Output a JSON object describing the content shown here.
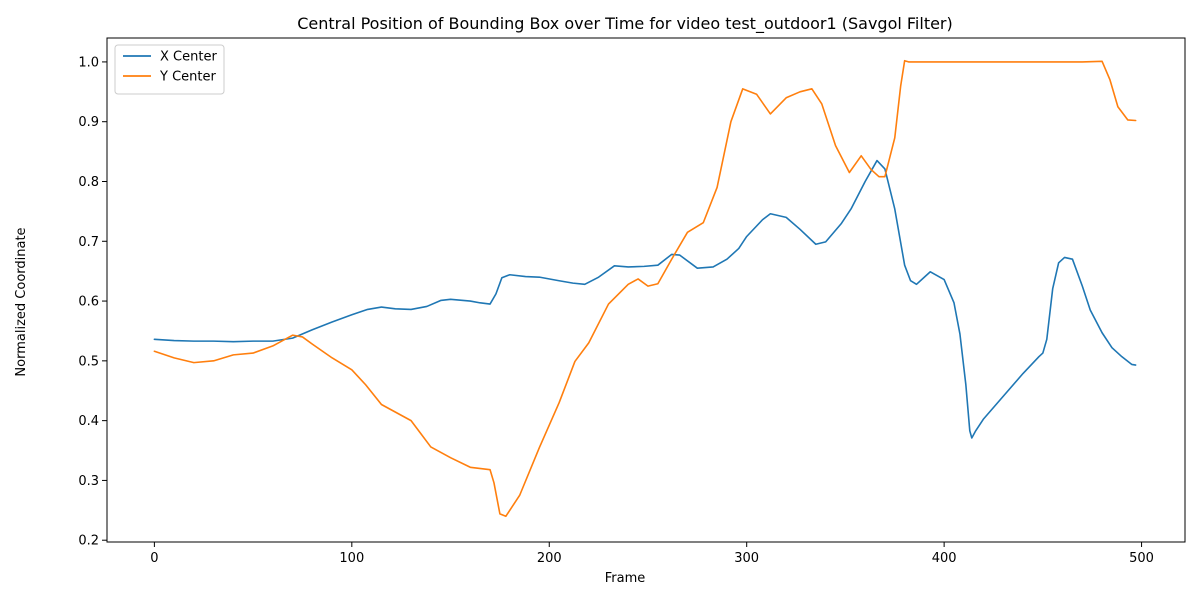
{
  "chart_data": {
    "type": "line",
    "title": "Central Position of Bounding Box over Time for video test_outdoor1 (Savgol Filter)",
    "xlabel": "Frame",
    "ylabel": "Normalized Coordinate",
    "xlim": [
      -24,
      522
    ],
    "ylim": [
      0.197,
      1.04
    ],
    "xticks": [
      0,
      100,
      200,
      300,
      400,
      500
    ],
    "yticks": [
      0.2,
      0.3,
      0.4,
      0.5,
      0.6,
      0.7,
      0.8,
      0.9,
      1.0
    ],
    "xtick_labels": [
      "0",
      "100",
      "200",
      "300",
      "400",
      "500"
    ],
    "ytick_labels": [
      "0.2",
      "0.3",
      "0.4",
      "0.5",
      "0.6",
      "0.7",
      "0.8",
      "0.9",
      "1.0"
    ],
    "grid": false,
    "legend_position": "upper-left",
    "series": [
      {
        "name": "X Center",
        "color": "#1f77b4",
        "points": [
          [
            0,
            0.536
          ],
          [
            10,
            0.534
          ],
          [
            20,
            0.533
          ],
          [
            30,
            0.533
          ],
          [
            40,
            0.532
          ],
          [
            50,
            0.533
          ],
          [
            60,
            0.533
          ],
          [
            70,
            0.538
          ],
          [
            80,
            0.552
          ],
          [
            90,
            0.565
          ],
          [
            100,
            0.577
          ],
          [
            108,
            0.586
          ],
          [
            115,
            0.59
          ],
          [
            122,
            0.587
          ],
          [
            130,
            0.586
          ],
          [
            138,
            0.591
          ],
          [
            145,
            0.601
          ],
          [
            150,
            0.603
          ],
          [
            160,
            0.6
          ],
          [
            165,
            0.597
          ],
          [
            170,
            0.595
          ],
          [
            173,
            0.612
          ],
          [
            176,
            0.639
          ],
          [
            180,
            0.644
          ],
          [
            188,
            0.641
          ],
          [
            195,
            0.64
          ],
          [
            205,
            0.634
          ],
          [
            212,
            0.63
          ],
          [
            218,
            0.628
          ],
          [
            225,
            0.64
          ],
          [
            233,
            0.659
          ],
          [
            240,
            0.657
          ],
          [
            248,
            0.658
          ],
          [
            255,
            0.66
          ],
          [
            262,
            0.678
          ],
          [
            266,
            0.677
          ],
          [
            275,
            0.655
          ],
          [
            283,
            0.657
          ],
          [
            290,
            0.67
          ],
          [
            296,
            0.688
          ],
          [
            300,
            0.708
          ],
          [
            308,
            0.736
          ],
          [
            312,
            0.746
          ],
          [
            320,
            0.74
          ],
          [
            327,
            0.72
          ],
          [
            335,
            0.695
          ],
          [
            340,
            0.699
          ],
          [
            348,
            0.73
          ],
          [
            353,
            0.755
          ],
          [
            360,
            0.8
          ],
          [
            366,
            0.835
          ],
          [
            370,
            0.821
          ],
          [
            375,
            0.754
          ],
          [
            380,
            0.66
          ],
          [
            383,
            0.634
          ],
          [
            386,
            0.628
          ],
          [
            390,
            0.64
          ],
          [
            393,
            0.649
          ],
          [
            400,
            0.636
          ],
          [
            405,
            0.597
          ],
          [
            408,
            0.545
          ],
          [
            411,
            0.46
          ],
          [
            413,
            0.383
          ],
          [
            414,
            0.371
          ],
          [
            416,
            0.383
          ],
          [
            420,
            0.403
          ],
          [
            430,
            0.441
          ],
          [
            440,
            0.479
          ],
          [
            448,
            0.507
          ],
          [
            450,
            0.513
          ],
          [
            452,
            0.536
          ],
          [
            455,
            0.621
          ],
          [
            458,
            0.664
          ],
          [
            461,
            0.673
          ],
          [
            465,
            0.67
          ],
          [
            470,
            0.625
          ],
          [
            474,
            0.585
          ],
          [
            480,
            0.547
          ],
          [
            485,
            0.522
          ],
          [
            490,
            0.507
          ],
          [
            495,
            0.494
          ],
          [
            497,
            0.493
          ]
        ]
      },
      {
        "name": "Y Center",
        "color": "#ff7f0e",
        "points": [
          [
            0,
            0.516
          ],
          [
            10,
            0.505
          ],
          [
            20,
            0.497
          ],
          [
            30,
            0.5
          ],
          [
            40,
            0.51
          ],
          [
            50,
            0.513
          ],
          [
            60,
            0.525
          ],
          [
            70,
            0.543
          ],
          [
            75,
            0.54
          ],
          [
            80,
            0.528
          ],
          [
            90,
            0.505
          ],
          [
            100,
            0.485
          ],
          [
            107,
            0.46
          ],
          [
            115,
            0.427
          ],
          [
            125,
            0.409
          ],
          [
            130,
            0.4
          ],
          [
            135,
            0.378
          ],
          [
            140,
            0.356
          ],
          [
            150,
            0.338
          ],
          [
            160,
            0.322
          ],
          [
            170,
            0.318
          ],
          [
            172,
            0.296
          ],
          [
            175,
            0.244
          ],
          [
            178,
            0.24
          ],
          [
            185,
            0.275
          ],
          [
            195,
            0.355
          ],
          [
            205,
            0.43
          ],
          [
            213,
            0.499
          ],
          [
            220,
            0.53
          ],
          [
            230,
            0.595
          ],
          [
            240,
            0.628
          ],
          [
            245,
            0.637
          ],
          [
            250,
            0.625
          ],
          [
            255,
            0.629
          ],
          [
            262,
            0.67
          ],
          [
            270,
            0.715
          ],
          [
            278,
            0.731
          ],
          [
            285,
            0.79
          ],
          [
            292,
            0.9
          ],
          [
            298,
            0.955
          ],
          [
            305,
            0.946
          ],
          [
            312,
            0.913
          ],
          [
            320,
            0.94
          ],
          [
            327,
            0.95
          ],
          [
            333,
            0.955
          ],
          [
            338,
            0.93
          ],
          [
            345,
            0.86
          ],
          [
            352,
            0.815
          ],
          [
            358,
            0.843
          ],
          [
            363,
            0.82
          ],
          [
            367,
            0.808
          ],
          [
            370,
            0.808
          ],
          [
            375,
            0.873
          ],
          [
            378,
            0.96
          ],
          [
            380,
            1.002
          ],
          [
            382,
            1.0
          ],
          [
            390,
            1.0
          ],
          [
            410,
            1.0
          ],
          [
            430,
            1.0
          ],
          [
            450,
            1.0
          ],
          [
            470,
            1.0
          ],
          [
            480,
            1.001
          ],
          [
            484,
            0.97
          ],
          [
            488,
            0.925
          ],
          [
            493,
            0.903
          ],
          [
            497,
            0.902
          ]
        ]
      }
    ]
  }
}
